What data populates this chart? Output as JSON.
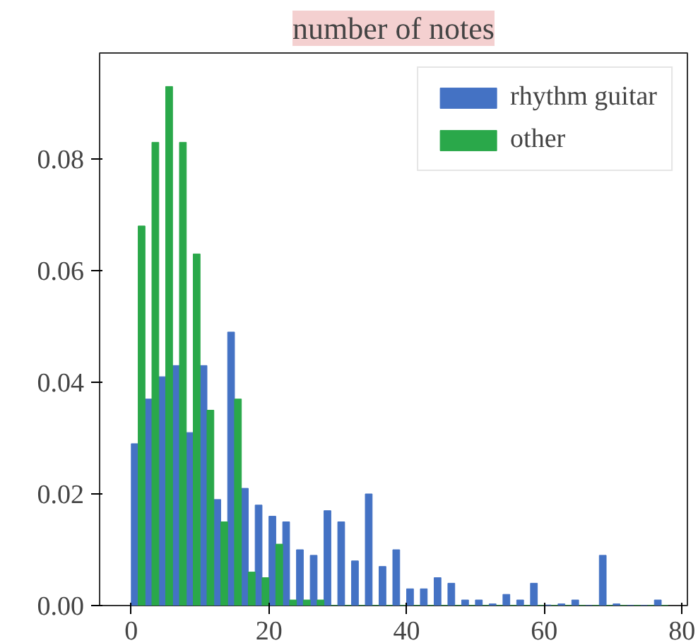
{
  "chart_data": {
    "type": "histogram",
    "title": "number of notes",
    "bins": [
      0,
      2,
      4,
      6,
      8,
      10,
      12,
      14,
      16,
      18,
      20,
      22,
      24,
      26,
      28,
      30,
      32,
      34,
      36,
      38,
      40,
      42,
      44,
      46,
      48,
      50,
      52,
      54,
      56,
      58,
      60,
      62,
      64,
      66,
      68,
      70,
      72,
      74,
      76,
      78
    ],
    "series": [
      {
        "name": "rhythm guitar",
        "color": "#4472c4",
        "values": [
          0.029,
          0.037,
          0.041,
          0.043,
          0.031,
          0.043,
          0.019,
          0.049,
          0.021,
          0.018,
          0.016,
          0.015,
          0.01,
          0.009,
          0.017,
          0.015,
          0.008,
          0.02,
          0.007,
          0.01,
          0.003,
          0.003,
          0.005,
          0.004,
          0.001,
          0.001,
          0.0003,
          0.002,
          0.001,
          0.004,
          0.0001,
          0.0003,
          0.001,
          0,
          0.009,
          0.0003,
          0,
          0,
          0.001
        ]
      },
      {
        "name": "other",
        "color": "#2aa84a",
        "values": [
          0.068,
          0.083,
          0.093,
          0.083,
          0.063,
          0.035,
          0.015,
          0.037,
          0.006,
          0.005,
          0.011,
          0.001,
          0.001,
          0.001,
          0,
          0,
          0,
          0,
          0,
          0,
          0,
          0,
          0,
          0,
          0,
          0,
          0,
          0,
          0,
          0,
          0,
          0,
          0,
          0,
          0,
          0,
          0,
          0,
          0
        ]
      }
    ],
    "xlim": [
      -4.6,
      80.8
    ],
    "ylim": [
      0,
      0.099
    ],
    "xticks": [
      0,
      20,
      40,
      60,
      80
    ],
    "yticks": [
      {
        "value": 0,
        "label": "0.00"
      },
      {
        "value": 0.02,
        "label": "0.02"
      },
      {
        "value": 0.04,
        "label": "0.04"
      },
      {
        "value": 0.06,
        "label": "0.06"
      },
      {
        "value": 0.08,
        "label": "0.08"
      }
    ],
    "legend": "top right",
    "grid": false
  }
}
